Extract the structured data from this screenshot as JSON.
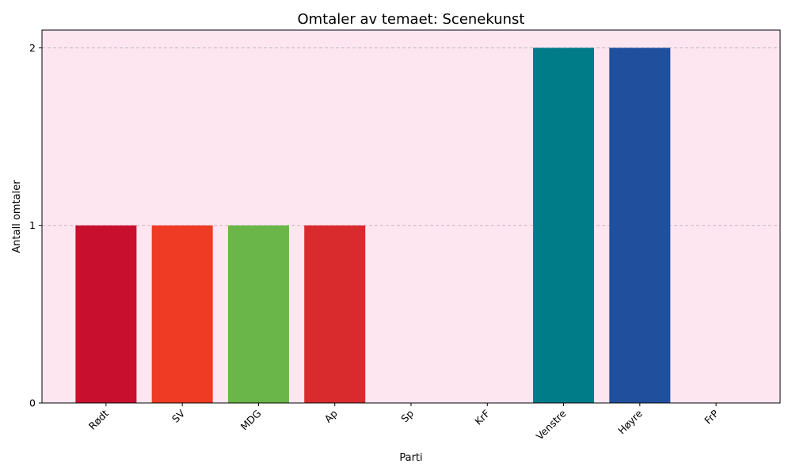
{
  "chart_data": {
    "type": "bar",
    "title": "Omtaler av temaet: Scenekunst",
    "xlabel": "Parti",
    "ylabel": "Antall omtaler",
    "categories": [
      "Rødt",
      "SV",
      "MDG",
      "Ap",
      "Sp",
      "KrF",
      "Venstre",
      "Høyre",
      "FrP"
    ],
    "values": [
      1,
      1,
      1,
      1,
      0,
      0,
      2,
      2,
      0
    ],
    "colors": [
      "#c8102e",
      "#ef3b24",
      "#6ab648",
      "#d92b2d",
      "#00843d",
      "#f7c600",
      "#007c89",
      "#204f9e",
      "#004a8f"
    ],
    "ylim": [
      0,
      2.1
    ],
    "yticks": [
      0,
      1,
      2
    ],
    "grid": true,
    "plot_background": "#fee6f0"
  }
}
